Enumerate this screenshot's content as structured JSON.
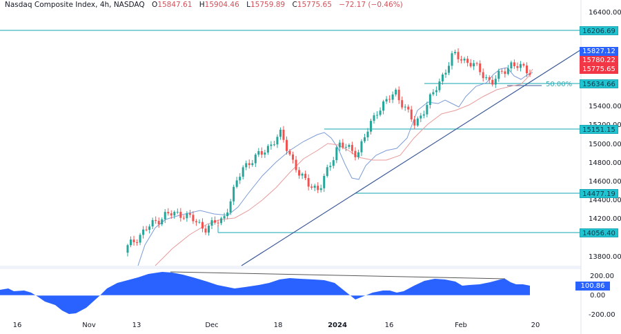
{
  "legend": {
    "symbol": "Nasdaq Composite Index, 4h, NASDAQ",
    "open_label": "O",
    "open": "15847.61",
    "high_label": "H",
    "high": "15904.46",
    "low_label": "L",
    "low": "15759.89",
    "close_label": "C",
    "close": "15775.65",
    "change": "−72.17 (−0.46%)"
  },
  "price_axis": {
    "ticks": [
      "16400.00",
      "15400.00",
      "15200.00",
      "15000.00",
      "14800.00",
      "14600.00",
      "14400.00",
      "14200.00",
      "13800.00"
    ]
  },
  "price_tags": {
    "resistance_1": "16206.69",
    "ma_fast": "15827.12",
    "ma_slow": "15780.22",
    "last_price": "15775.65",
    "support_1": "15634.66",
    "support_2": "15151.15",
    "support_3": "14477.19",
    "support_4": "14056.40"
  },
  "fib_label": "50.00%",
  "oscillator_axis": {
    "ticks": [
      "200.00",
      "0.00",
      "-200.00"
    ],
    "current": "100.86"
  },
  "time_axis": {
    "labels": [
      "16",
      "Nov",
      "13",
      "Dec",
      "18",
      "2024",
      "16",
      "Feb",
      "20"
    ]
  },
  "colors": {
    "up_candle": "#26a69a",
    "down_candle": "#ef5350",
    "ma_fast": "#7b9bd6",
    "ma_slow": "#e89a9a",
    "horizontal_levels": "#3fb6c0",
    "trendline": "#3b5998",
    "oscillator_fill": "#2962ff"
  },
  "chart_data": [
    {
      "type": "candlestick",
      "title": "Nasdaq Composite Index, 4h, NASDAQ",
      "ohlc_last": {
        "open": 15847.61,
        "high": 15904.46,
        "low": 15759.89,
        "close": 15775.65,
        "change": -72.17,
        "change_pct": -0.46
      },
      "x_ticks": [
        "16",
        "Nov",
        "13",
        "Dec",
        "18",
        "2024",
        "16",
        "Feb",
        "20"
      ],
      "y_ticks": [
        13800,
        14000,
        14200,
        14400,
        14600,
        14800,
        15000,
        15200,
        15400,
        16400
      ],
      "ylim": [
        13700,
        16550
      ],
      "horizontal_levels": [
        16206.69,
        15634.66,
        15151.15,
        14477.19,
        14056.4
      ],
      "fib_level": {
        "label": "50.00%",
        "value": 15634.66
      },
      "moving_averages": [
        {
          "name": "fast MA",
          "last": 15827.12
        },
        {
          "name": "slow MA",
          "last": 15780.22
        }
      ],
      "trendline": {
        "from": {
          "x": "early Dec",
          "y": 13750
        },
        "to": {
          "x": "20 Feb",
          "y": 15860
        }
      },
      "approx_closes": [
        {
          "x": "13 Nov",
          "y": 13900
        },
        {
          "x": "15 Nov",
          "y": 14100
        },
        {
          "x": "20 Nov",
          "y": 14250
        },
        {
          "x": "28 Nov",
          "y": 14250
        },
        {
          "x": "Dec 1",
          "y": 14100
        },
        {
          "x": "Dec 6",
          "y": 14200
        },
        {
          "x": "Dec 13",
          "y": 14750
        },
        {
          "x": "Dec 18",
          "y": 14900
        },
        {
          "x": "Dec 27",
          "y": 15100
        },
        {
          "x": "Jan 4",
          "y": 14650
        },
        {
          "x": "Jan 8",
          "y": 14500
        },
        {
          "x": "Jan 11",
          "y": 15000
        },
        {
          "x": "Jan 16",
          "y": 14900
        },
        {
          "x": "Jan 19",
          "y": 15350
        },
        {
          "x": "Jan 24",
          "y": 15550
        },
        {
          "x": "Jan 31",
          "y": 15200
        },
        {
          "x": "Feb 2",
          "y": 15550
        },
        {
          "x": "Feb 9",
          "y": 15950
        },
        {
          "x": "Feb 12",
          "y": 15850
        },
        {
          "x": "Feb 13",
          "y": 15650
        },
        {
          "x": "Feb 15",
          "y": 15850
        },
        {
          "x": "Feb 16",
          "y": 15775.65
        }
      ]
    },
    {
      "type": "area",
      "title": "Oscillator",
      "y_ticks": [
        -200,
        0,
        200
      ],
      "ylim": [
        -250,
        250
      ],
      "current": 100.86,
      "approx_values": [
        {
          "x": "16",
          "y": 60
        },
        {
          "x": "Oct 20",
          "y": 55
        },
        {
          "x": "Oct 25",
          "y": 70
        },
        {
          "x": "Nov",
          "y": -50
        },
        {
          "x": "Nov 3",
          "y": -200
        },
        {
          "x": "Nov 8",
          "y": -100
        },
        {
          "x": "13",
          "y": 60
        },
        {
          "x": "Nov 17",
          "y": 140
        },
        {
          "x": "Nov 21",
          "y": 200
        },
        {
          "x": "Nov 24",
          "y": 230
        },
        {
          "x": "Dec",
          "y": 170
        },
        {
          "x": "Dec 8",
          "y": 120
        },
        {
          "x": "Dec 13",
          "y": 80
        },
        {
          "x": "18",
          "y": 140
        },
        {
          "x": "Dec 27",
          "y": 190
        },
        {
          "x": "2024",
          "y": 140
        },
        {
          "x": "Jan 5",
          "y": -20
        },
        {
          "x": "Jan 8",
          "y": -90
        },
        {
          "x": "Jan 11",
          "y": 20
        },
        {
          "x": "16",
          "y": 60
        },
        {
          "x": "Jan 19",
          "y": 40
        },
        {
          "x": "Jan 24",
          "y": 160
        },
        {
          "x": "Jan 30",
          "y": 150
        },
        {
          "x": "Feb",
          "y": 80
        },
        {
          "x": "Feb 7",
          "y": 120
        },
        {
          "x": "Feb 12",
          "y": 180
        },
        {
          "x": "Feb 14",
          "y": 110
        },
        {
          "x": "Feb 16",
          "y": 100.86
        }
      ],
      "divergence_line": {
        "from": {
          "x": "Nov 24",
          "y": 230
        },
        "to": {
          "x": "Feb 12",
          "y": 180
        }
      }
    }
  ]
}
